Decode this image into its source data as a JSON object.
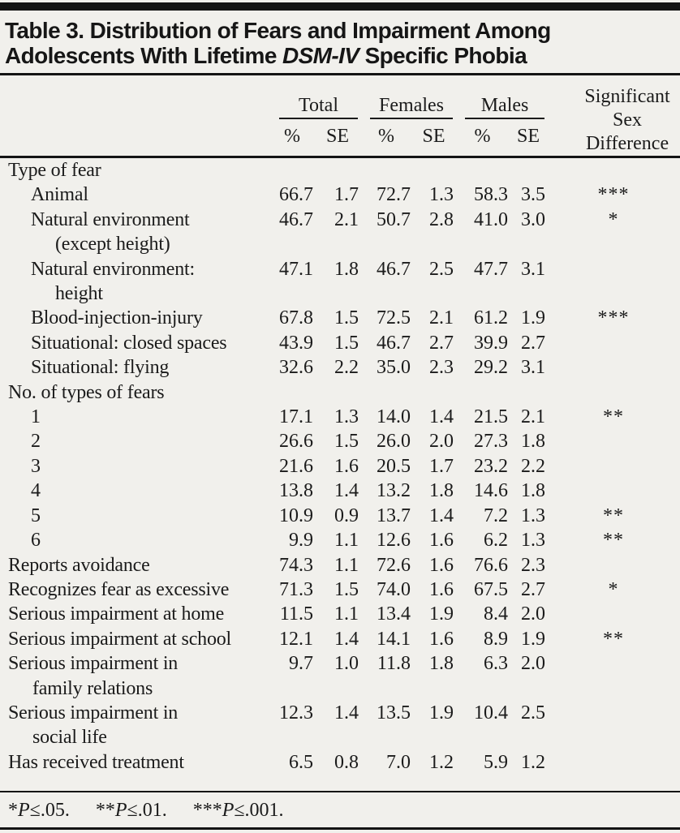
{
  "title": {
    "line1": "Table 3. Distribution of Fears and Impairment Among",
    "line2_pre": "Adolescents With Lifetime ",
    "line2_italic": "DSM-IV",
    "line2_post": " Specific Phobia"
  },
  "header": {
    "groups": [
      {
        "label": "Total"
      },
      {
        "label": "Females"
      },
      {
        "label": "Males"
      }
    ],
    "subcols": [
      "%",
      "SE"
    ],
    "sig": {
      "line1": "Significant",
      "line2": "Sex",
      "line3": "Difference"
    }
  },
  "table": {
    "rows": [
      {
        "label": "Type of fear",
        "indent": 0,
        "section": true,
        "values": [
          "",
          "",
          "",
          "",
          "",
          ""
        ],
        "sig": ""
      },
      {
        "label": "Animal",
        "indent": 1,
        "values": [
          "66.7",
          "1.7",
          "72.7",
          "1.3",
          "58.3",
          "3.5"
        ],
        "sig": "***"
      },
      {
        "label": "Natural environment",
        "label2": "(except height)",
        "indent": 1,
        "values": [
          "46.7",
          "2.1",
          "50.7",
          "2.8",
          "41.0",
          "3.0"
        ],
        "sig": "*"
      },
      {
        "label": "Natural environment:",
        "label2": "height",
        "indent": 1,
        "values": [
          "47.1",
          "1.8",
          "46.7",
          "2.5",
          "47.7",
          "3.1"
        ],
        "sig": ""
      },
      {
        "label": "Blood-injection-injury",
        "indent": 1,
        "values": [
          "67.8",
          "1.5",
          "72.5",
          "2.1",
          "61.2",
          "1.9"
        ],
        "sig": "***"
      },
      {
        "label": "Situational: closed spaces",
        "indent": 1,
        "values": [
          "43.9",
          "1.5",
          "46.7",
          "2.7",
          "39.9",
          "2.7"
        ],
        "sig": ""
      },
      {
        "label": "Situational: flying",
        "indent": 1,
        "values": [
          "32.6",
          "2.2",
          "35.0",
          "2.3",
          "29.2",
          "3.1"
        ],
        "sig": ""
      },
      {
        "label": "No. of types of fears",
        "indent": 0,
        "section": true,
        "values": [
          "",
          "",
          "",
          "",
          "",
          ""
        ],
        "sig": ""
      },
      {
        "label": "1",
        "indent": 1,
        "values": [
          "17.1",
          "1.3",
          "14.0",
          "1.4",
          "21.5",
          "2.1"
        ],
        "sig": "**"
      },
      {
        "label": "2",
        "indent": 1,
        "values": [
          "26.6",
          "1.5",
          "26.0",
          "2.0",
          "27.3",
          "1.8"
        ],
        "sig": ""
      },
      {
        "label": "3",
        "indent": 1,
        "values": [
          "21.6",
          "1.6",
          "20.5",
          "1.7",
          "23.2",
          "2.2"
        ],
        "sig": ""
      },
      {
        "label": "4",
        "indent": 1,
        "values": [
          "13.8",
          "1.4",
          "13.2",
          "1.8",
          "14.6",
          "1.8"
        ],
        "sig": ""
      },
      {
        "label": "5",
        "indent": 1,
        "values": [
          "10.9",
          "0.9",
          "13.7",
          "1.4",
          "7.2",
          "1.3"
        ],
        "sig": "**"
      },
      {
        "label": "6",
        "indent": 1,
        "values": [
          "9.9",
          "1.1",
          "12.6",
          "1.6",
          "6.2",
          "1.3"
        ],
        "sig": "**"
      },
      {
        "label": "Reports avoidance",
        "indent": 0,
        "values": [
          "74.3",
          "1.1",
          "72.6",
          "1.6",
          "76.6",
          "2.3"
        ],
        "sig": ""
      },
      {
        "label": "Recognizes fear as excessive",
        "indent": 0,
        "values": [
          "71.3",
          "1.5",
          "74.0",
          "1.6",
          "67.5",
          "2.7"
        ],
        "sig": "*"
      },
      {
        "label": "Serious impairment at home",
        "indent": 0,
        "values": [
          "11.5",
          "1.1",
          "13.4",
          "1.9",
          "8.4",
          "2.0"
        ],
        "sig": ""
      },
      {
        "label": "Serious impairment at school",
        "indent": 0,
        "values": [
          "12.1",
          "1.4",
          "14.1",
          "1.6",
          "8.9",
          "1.9"
        ],
        "sig": "**"
      },
      {
        "label": "Serious impairment in",
        "label2": "family relations",
        "indent": 0,
        "values": [
          "9.7",
          "1.0",
          "11.8",
          "1.8",
          "6.3",
          "2.0"
        ],
        "sig": ""
      },
      {
        "label": "Serious impairment in",
        "label2": "social life",
        "indent": 0,
        "values": [
          "12.3",
          "1.4",
          "13.5",
          "1.9",
          "10.4",
          "2.5"
        ],
        "sig": ""
      },
      {
        "label": "Has received treatment",
        "indent": 0,
        "values": [
          "6.5",
          "0.8",
          "7.0",
          "1.2",
          "5.9",
          "1.2"
        ],
        "sig": ""
      }
    ]
  },
  "footnote": {
    "seg1_stars": "*",
    "seg1_p": "P",
    "seg1_rest": "≤.05.",
    "seg2_stars": "**",
    "seg2_p": "P",
    "seg2_rest": "≤.01.",
    "seg3_stars": "***",
    "seg3_p": "P",
    "seg3_rest": "≤.001."
  },
  "colors": {
    "background": "#f1f0ec",
    "text": "#1b1b1b",
    "rule": "#141414"
  }
}
